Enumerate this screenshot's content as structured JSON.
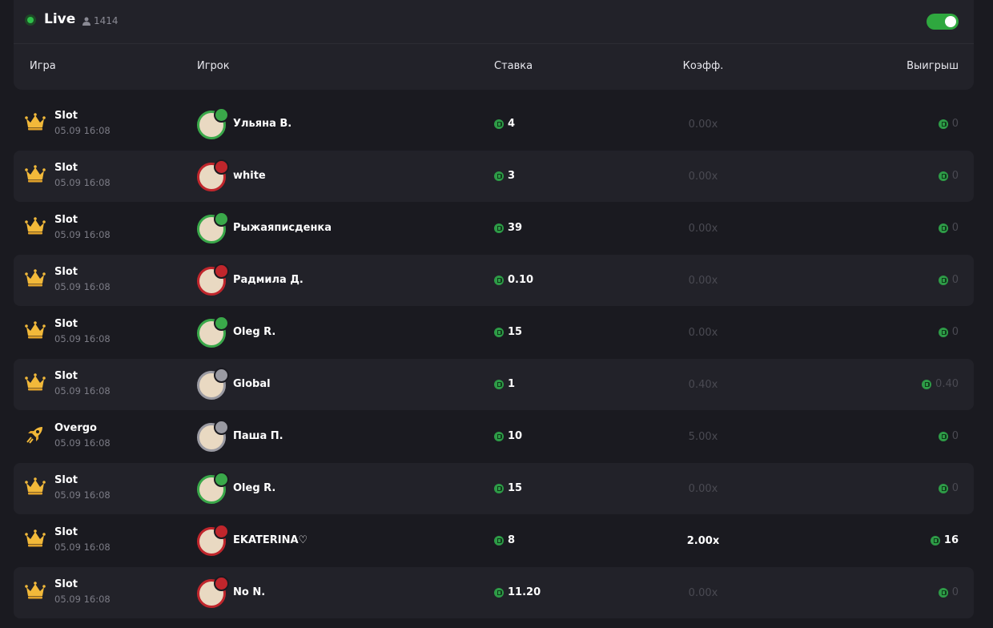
{
  "header": {
    "title": "Live",
    "online": "1414",
    "columns": [
      "Игра",
      "Игрок",
      "Ставка",
      "Коэфф.",
      "Выигрыш"
    ]
  },
  "table": {
    "rows": [
      {
        "game": "Slot",
        "date": "05.09 16:08",
        "player": "Ульяна В.",
        "bet": "4",
        "coef": "0.00x",
        "win": "0"
      },
      {
        "game": "Slot",
        "date": "05.09 16:08",
        "player": "white",
        "bet": "3",
        "coef": "0.00x",
        "win": "0"
      },
      {
        "game": "Slot",
        "date": "05.09 16:08",
        "player": "Рыжаяписденка",
        "bet": "39",
        "coef": "0.00x",
        "win": "0"
      },
      {
        "game": "Slot",
        "date": "05.09 16:08",
        "player": "Радмила Д.",
        "bet": "0.10",
        "coef": "0.00x",
        "win": "0"
      },
      {
        "game": "Slot",
        "date": "05.09 16:08",
        "player": "Oleg R.",
        "bet": "15",
        "coef": "0.00x",
        "win": "0"
      },
      {
        "game": "Slot",
        "date": "05.09 16:08",
        "player": "Global",
        "bet": "1",
        "coef": "0.40x",
        "win": "0.40"
      },
      {
        "game": "Overgo",
        "date": "05.09 16:08",
        "player": "Паша П.",
        "bet": "10",
        "coef": "5.00x",
        "win": "0"
      },
      {
        "game": "Slot",
        "date": "05.09 16:08",
        "player": "Oleg R.",
        "bet": "15",
        "coef": "0.00x",
        "win": "0"
      },
      {
        "game": "Slot",
        "date": "05.09 16:08",
        "player": "EKATERINA♡",
        "bet": "8",
        "coef": "2.00x",
        "win": "16"
      },
      {
        "game": "Slot",
        "date": "05.09 16:08",
        "player": "No N.",
        "bet": "11.20",
        "coef": "0.00x",
        "win": "0"
      }
    ]
  }
}
